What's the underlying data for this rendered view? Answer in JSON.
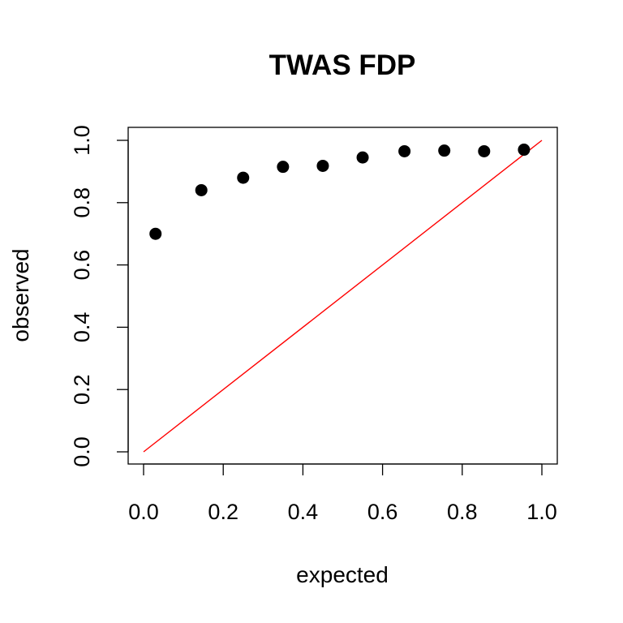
{
  "chart_data": {
    "type": "scatter",
    "title": "TWAS FDP",
    "xlabel": "expected",
    "ylabel": "observed",
    "xlim": [
      0,
      1
    ],
    "ylim": [
      0,
      1
    ],
    "x_ticks": [
      "0.0",
      "0.2",
      "0.4",
      "0.6",
      "0.8",
      "1.0"
    ],
    "y_ticks": [
      "0.0",
      "0.2",
      "0.4",
      "0.6",
      "0.8",
      "1.0"
    ],
    "grid": false,
    "point_color": "#000000",
    "reference_line": {
      "from": [
        0,
        0
      ],
      "to": [
        1,
        1
      ],
      "color": "#ff0000"
    },
    "points": [
      {
        "x": 0.03,
        "y": 0.7
      },
      {
        "x": 0.145,
        "y": 0.84
      },
      {
        "x": 0.25,
        "y": 0.88
      },
      {
        "x": 0.35,
        "y": 0.915
      },
      {
        "x": 0.45,
        "y": 0.918
      },
      {
        "x": 0.55,
        "y": 0.945
      },
      {
        "x": 0.655,
        "y": 0.965
      },
      {
        "x": 0.755,
        "y": 0.967
      },
      {
        "x": 0.855,
        "y": 0.965
      },
      {
        "x": 0.955,
        "y": 0.97
      }
    ]
  }
}
